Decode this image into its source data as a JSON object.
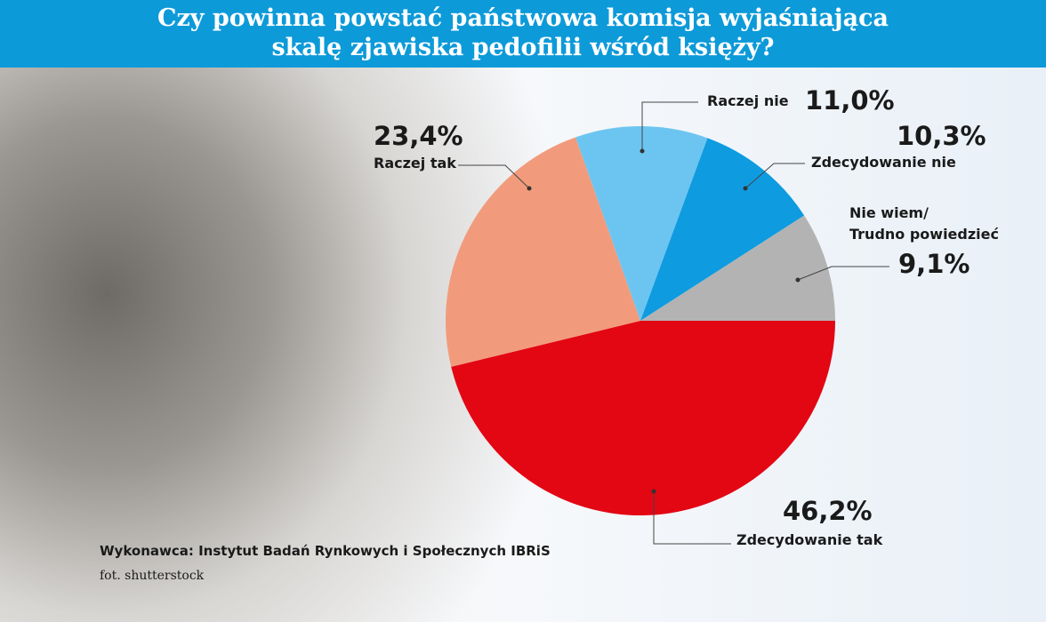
{
  "chart_data": {
    "type": "pie",
    "title": "Czy powinna powstać państwowa komisja wyjaśniająca\nskalę zjawiska pedofilii wśród księży?",
    "categories": [
      "Zdecydowanie tak",
      "Raczej tak",
      "Raczej nie",
      "Zdecydowanie nie",
      "Nie wiem/\nTrudno powiedzieć"
    ],
    "values": [
      46.2,
      23.4,
      11.0,
      10.3,
      9.1
    ],
    "value_labels": [
      "46,2%",
      "23,4%",
      "11,0%",
      "10,3%",
      "9,1%"
    ],
    "colors": [
      "#e30613",
      "#f19b7c",
      "#6cc5f0",
      "#0e9be0",
      "#b3b3b3"
    ],
    "source": "Wykonawca: Instytut Badań Rynkowych i Społecznych IBRiS",
    "photo_credit": "fot. shutterstock"
  }
}
